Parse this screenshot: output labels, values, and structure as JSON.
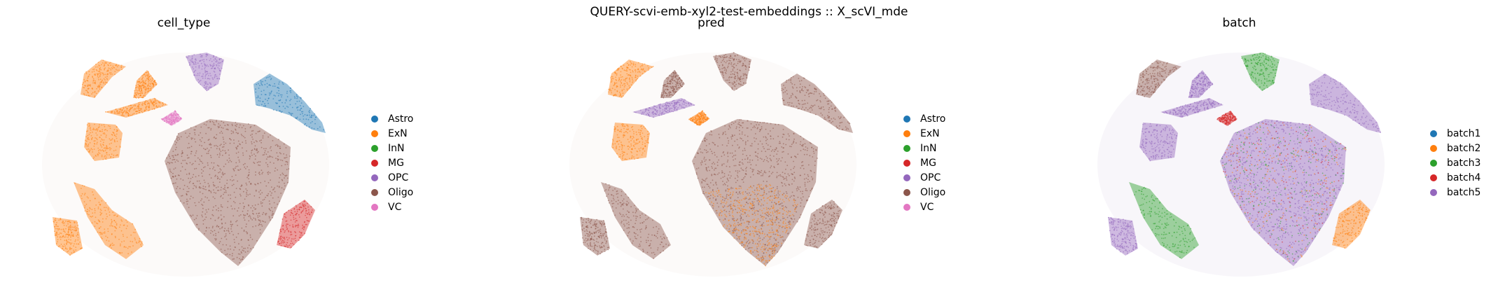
{
  "figure": {
    "suptitle": "QUERY-scvi-emb-xyl2-test-embeddings :: X_scVI_mde"
  },
  "palette": {
    "blue": "#1f77b4",
    "orange": "#ff7f0e",
    "green": "#2ca02c",
    "red": "#d62728",
    "purple": "#9467bd",
    "brown": "#8c564b",
    "pink": "#e377c2"
  },
  "chart_data": [
    {
      "type": "scatter",
      "title": "cell_type",
      "xlabel": "",
      "ylabel": "",
      "axes_visible": false,
      "grid": false,
      "legend_position": "right",
      "legend": [
        {
          "label": "Astro",
          "color": "#1f77b4"
        },
        {
          "label": "ExN",
          "color": "#ff7f0e"
        },
        {
          "label": "InN",
          "color": "#2ca02c"
        },
        {
          "label": "MG",
          "color": "#d62728"
        },
        {
          "label": "OPC",
          "color": "#9467bd"
        },
        {
          "label": "Oligo",
          "color": "#8c564b"
        },
        {
          "label": "VC",
          "color": "#e377c2"
        }
      ]
    },
    {
      "type": "scatter",
      "title": "pred",
      "xlabel": "",
      "ylabel": "",
      "axes_visible": false,
      "grid": false,
      "legend_position": "right",
      "legend": [
        {
          "label": "Astro",
          "color": "#1f77b4"
        },
        {
          "label": "ExN",
          "color": "#ff7f0e"
        },
        {
          "label": "InN",
          "color": "#2ca02c"
        },
        {
          "label": "MG",
          "color": "#d62728"
        },
        {
          "label": "OPC",
          "color": "#9467bd"
        },
        {
          "label": "Oligo",
          "color": "#8c564b"
        },
        {
          "label": "VC",
          "color": "#e377c2"
        }
      ]
    },
    {
      "type": "scatter",
      "title": "batch",
      "xlabel": "",
      "ylabel": "",
      "axes_visible": false,
      "grid": false,
      "legend_position": "right",
      "legend": [
        {
          "label": "batch1",
          "color": "#1f77b4"
        },
        {
          "label": "batch2",
          "color": "#ff7f0e"
        },
        {
          "label": "batch3",
          "color": "#2ca02c"
        },
        {
          "label": "batch4",
          "color": "#d62728"
        },
        {
          "label": "batch5",
          "color": "#9467bd"
        }
      ]
    }
  ]
}
